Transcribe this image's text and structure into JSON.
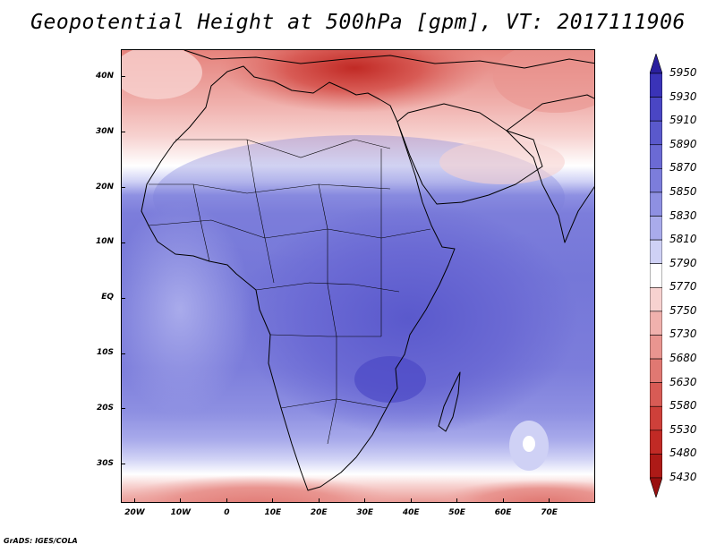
{
  "title": "Geopotential Height at 500hPa [gpm], VT: 2017111906",
  "credit": "GrADS: IGES/COLA",
  "map": {
    "lon_range": [
      -23,
      80
    ],
    "lat_range": [
      -37,
      45
    ],
    "lon_ticks": [
      {
        "value": -20,
        "label": "20W"
      },
      {
        "value": -10,
        "label": "10W"
      },
      {
        "value": 0,
        "label": "0"
      },
      {
        "value": 10,
        "label": "10E"
      },
      {
        "value": 20,
        "label": "20E"
      },
      {
        "value": 30,
        "label": "30E"
      },
      {
        "value": 40,
        "label": "40E"
      },
      {
        "value": 50,
        "label": "50E"
      },
      {
        "value": 60,
        "label": "60E"
      },
      {
        "value": 70,
        "label": "70E"
      }
    ],
    "lat_ticks": [
      {
        "value": 40,
        "label": "40N"
      },
      {
        "value": 30,
        "label": "30N"
      },
      {
        "value": 20,
        "label": "20N"
      },
      {
        "value": 10,
        "label": "10N"
      },
      {
        "value": 0,
        "label": "EQ"
      },
      {
        "value": -10,
        "label": "10S"
      },
      {
        "value": -20,
        "label": "20S"
      },
      {
        "value": -30,
        "label": "30S"
      }
    ]
  },
  "colorbar": {
    "levels": [
      5950,
      5930,
      5910,
      5890,
      5870,
      5850,
      5830,
      5810,
      5790,
      5770,
      5750,
      5730,
      5680,
      5630,
      5580,
      5530,
      5480,
      5430
    ],
    "colors": [
      "#2a1f9e",
      "#3a33b8",
      "#4a46c4",
      "#5a59cc",
      "#6b6ad4",
      "#7c7ddb",
      "#8e90e2",
      "#a9abeb",
      "#cfd1f5",
      "#ffffff",
      "#f7d2d0",
      "#f0b1ad",
      "#e99590",
      "#e07872",
      "#d85b55",
      "#ce403a",
      "#c12a25",
      "#ad1a17",
      "#991010"
    ]
  }
}
